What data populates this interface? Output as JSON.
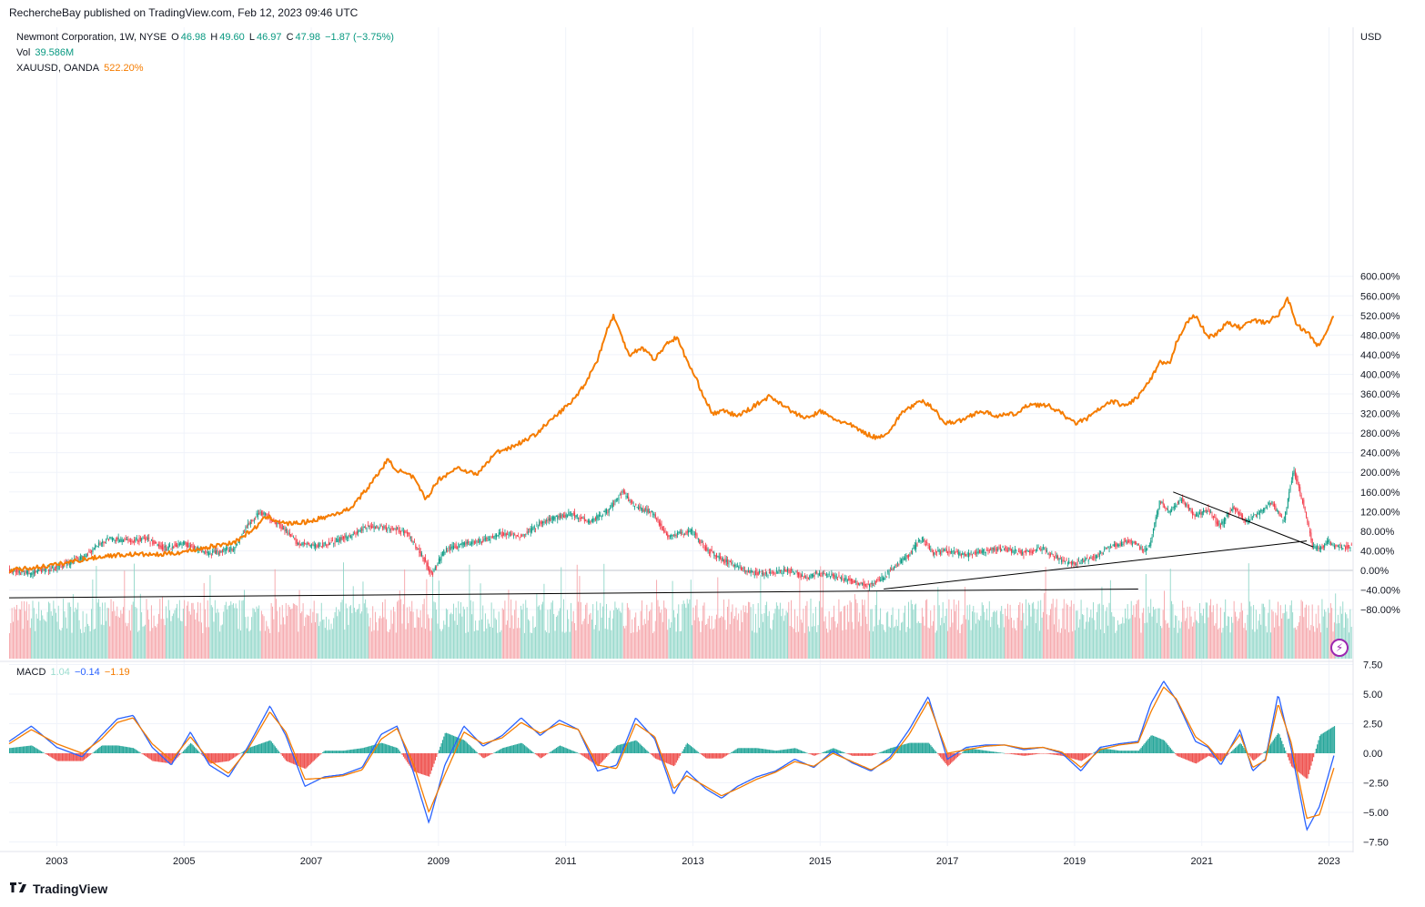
{
  "header": {
    "publisher_text": "RechercheBay published on TradingView.com, Feb 12, 2023 09:46 UTC"
  },
  "legend": {
    "symbol": "Newmont Corporation, 1W, NYSE",
    "o_label": "O",
    "o_value": "46.98",
    "h_label": "H",
    "h_value": "49.60",
    "l_label": "L",
    "l_value": "46.97",
    "c_label": "C",
    "c_value": "47.98",
    "change": "−1.87 (−3.75%)",
    "vol_label": "Vol",
    "vol_value": "39.586M",
    "compare_symbol": "XAUUSD, OANDA",
    "compare_value": "522.20%"
  },
  "macd_legend": {
    "label": "MACD",
    "histogram": "1.04",
    "macd": "−0.14",
    "signal": "−1.19"
  },
  "axis": {
    "currency": "USD",
    "y_ticks": [
      "600.00%",
      "560.00%",
      "520.00%",
      "480.00%",
      "440.00%",
      "400.00%",
      "360.00%",
      "320.00%",
      "280.00%",
      "240.00%",
      "200.00%",
      "160.00%",
      "120.00%",
      "80.00%",
      "40.00%",
      "0.00%",
      "−40.00%",
      "−80.00%"
    ],
    "macd_ticks": [
      "7.50",
      "5.00",
      "2.50",
      "0.00",
      "−2.50",
      "−5.00",
      "−7.50"
    ],
    "x_ticks": [
      "2003",
      "2005",
      "2007",
      "2009",
      "2011",
      "2013",
      "2015",
      "2017",
      "2019",
      "2021",
      "2023"
    ]
  },
  "footer": {
    "brand": "TradingView"
  },
  "colors": {
    "gold": "#f57c00",
    "up": "#089981",
    "down": "#f23645",
    "vol_up": "#8fd6c8",
    "vol_down": "#f5a3a8",
    "macd": "#2962ff",
    "signal": "#f57c00",
    "trendline": "#000000"
  },
  "chart_data": {
    "type": "line",
    "x_range": [
      2002.25,
      2023.35
    ],
    "ylim": [
      -100,
      640
    ],
    "y_unit": "%",
    "series": [
      {
        "name": "XAUUSD, OANDA",
        "x": [
          2002.25,
          2002.6,
          2003.0,
          2003.4,
          2003.8,
          2004.2,
          2004.6,
          2005.0,
          2005.4,
          2005.8,
          2006.1,
          2006.3,
          2006.6,
          2006.9,
          2007.2,
          2007.6,
          2007.9,
          2008.2,
          2008.35,
          2008.6,
          2008.8,
          2009.0,
          2009.3,
          2009.6,
          2009.9,
          2010.2,
          2010.5,
          2010.8,
          2011.1,
          2011.3,
          2011.5,
          2011.65,
          2011.75,
          2011.9,
          2012.0,
          2012.2,
          2012.4,
          2012.6,
          2012.75,
          2012.9,
          2013.05,
          2013.3,
          2013.5,
          2013.7,
          2013.9,
          2014.2,
          2014.4,
          2014.6,
          2014.8,
          2015.0,
          2015.2,
          2015.5,
          2015.7,
          2015.9,
          2016.1,
          2016.3,
          2016.6,
          2016.8,
          2016.95,
          2017.2,
          2017.5,
          2017.8,
          2018.1,
          2018.3,
          2018.6,
          2018.8,
          2019.0,
          2019.2,
          2019.4,
          2019.6,
          2019.8,
          2020.0,
          2020.2,
          2020.35,
          2020.5,
          2020.6,
          2020.75,
          2020.9,
          2021.1,
          2021.25,
          2021.4,
          2021.6,
          2021.8,
          2022.0,
          2022.2,
          2022.35,
          2022.5,
          2022.7,
          2022.85,
          2023.0,
          2023.08
        ],
        "values": [
          0,
          5,
          12,
          22,
          30,
          33,
          32,
          38,
          48,
          58,
          85,
          110,
          95,
          98,
          108,
          125,
          170,
          225,
          205,
          190,
          145,
          185,
          210,
          195,
          240,
          255,
          275,
          310,
          345,
          380,
          430,
          490,
          520,
          470,
          440,
          455,
          430,
          465,
          475,
          430,
          390,
          320,
          325,
          315,
          330,
          355,
          340,
          320,
          310,
          325,
          310,
          295,
          280,
          270,
          285,
          325,
          345,
          330,
          300,
          305,
          325,
          315,
          320,
          340,
          335,
          320,
          300,
          310,
          330,
          345,
          335,
          355,
          390,
          425,
          420,
          465,
          505,
          520,
          475,
          485,
          505,
          495,
          510,
          505,
          520,
          555,
          500,
          480,
          455,
          500,
          522
        ]
      },
      {
        "name": "Newmont Corporation, 1W, NYSE",
        "x": [
          2002.25,
          2002.6,
          2003.0,
          2003.4,
          2003.8,
          2004.2,
          2004.4,
          2004.7,
          2005.0,
          2005.4,
          2005.8,
          2006.0,
          2006.2,
          2006.5,
          2006.8,
          2007.1,
          2007.4,
          2007.7,
          2007.9,
          2008.2,
          2008.5,
          2008.8,
          2008.9,
          2009.1,
          2009.4,
          2009.7,
          2010.0,
          2010.3,
          2010.6,
          2010.9,
          2011.1,
          2011.4,
          2011.7,
          2011.9,
          2012.1,
          2012.4,
          2012.6,
          2012.8,
          2013.0,
          2013.2,
          2013.5,
          2013.7,
          2013.9,
          2014.2,
          2014.5,
          2014.8,
          2015.0,
          2015.3,
          2015.6,
          2015.8,
          2016.0,
          2016.2,
          2016.4,
          2016.6,
          2016.8,
          2017.0,
          2017.3,
          2017.6,
          2017.9,
          2018.2,
          2018.5,
          2018.8,
          2019.0,
          2019.3,
          2019.6,
          2019.9,
          2020.1,
          2020.2,
          2020.35,
          2020.5,
          2020.7,
          2020.9,
          2021.1,
          2021.3,
          2021.5,
          2021.7,
          2021.9,
          2022.1,
          2022.3,
          2022.45,
          2022.6,
          2022.75,
          2022.9,
          2023.0,
          2023.08
        ],
        "values": [
          0,
          -5,
          5,
          25,
          65,
          60,
          65,
          45,
          55,
          35,
          45,
          90,
          120,
          95,
          55,
          50,
          60,
          75,
          90,
          85,
          80,
          20,
          -10,
          40,
          55,
          60,
          75,
          70,
          95,
          110,
          115,
          100,
          125,
          160,
          130,
          115,
          70,
          75,
          80,
          45,
          20,
          10,
          -5,
          -5,
          0,
          -15,
          -5,
          -15,
          -25,
          -30,
          -15,
          10,
          30,
          65,
          35,
          40,
          30,
          40,
          45,
          35,
          45,
          20,
          15,
          25,
          50,
          60,
          40,
          55,
          140,
          120,
          145,
          110,
          125,
          90,
          130,
          100,
          115,
          140,
          100,
          205,
          140,
          50,
          45,
          60,
          48
        ]
      }
    ],
    "volume_bars": "weekly, ~1090 bars (not individually legible)",
    "macd": {
      "name": "MACD",
      "ylim": [
        -7.5,
        7.5
      ],
      "x": [
        2002.25,
        2002.6,
        2003.0,
        2003.4,
        2003.7,
        2003.95,
        2004.2,
        2004.5,
        2004.8,
        2005.1,
        2005.4,
        2005.7,
        2006.0,
        2006.35,
        2006.6,
        2006.9,
        2007.2,
        2007.5,
        2007.8,
        2008.1,
        2008.35,
        2008.6,
        2008.85,
        2009.1,
        2009.4,
        2009.7,
        2010.0,
        2010.3,
        2010.6,
        2010.9,
        2011.2,
        2011.5,
        2011.8,
        2012.1,
        2012.4,
        2012.7,
        2012.9,
        2013.2,
        2013.45,
        2013.7,
        2014.0,
        2014.3,
        2014.6,
        2014.9,
        2015.2,
        2015.5,
        2015.8,
        2016.1,
        2016.4,
        2016.7,
        2017.0,
        2017.3,
        2017.6,
        2017.9,
        2018.2,
        2018.5,
        2018.8,
        2019.1,
        2019.4,
        2019.7,
        2020.0,
        2020.2,
        2020.4,
        2020.6,
        2020.9,
        2021.1,
        2021.3,
        2021.6,
        2021.8,
        2022.0,
        2022.2,
        2022.4,
        2022.65,
        2022.85,
        2023.08
      ],
      "macd_values": [
        1.0,
        2.3,
        0.5,
        -0.3,
        1.5,
        2.9,
        3.2,
        0.5,
        -1.0,
        1.8,
        -1.0,
        -2.0,
        0.5,
        4.0,
        1.5,
        -2.8,
        -2.0,
        -1.8,
        -1.2,
        1.6,
        2.3,
        -1.5,
        -5.9,
        -1.0,
        2.3,
        0.6,
        1.5,
        3.0,
        1.5,
        2.8,
        2.0,
        -1.5,
        -1.0,
        3.0,
        1.2,
        -3.5,
        -1.5,
        -3.0,
        -3.8,
        -2.8,
        -2.0,
        -1.5,
        -0.5,
        -1.2,
        0.2,
        -0.8,
        -1.5,
        -0.3,
        2.0,
        4.8,
        -0.5,
        0.5,
        0.7,
        0.7,
        0.3,
        0.5,
        0.0,
        -1.5,
        0.5,
        0.8,
        1.0,
        4.2,
        6.1,
        4.5,
        1.0,
        0.5,
        -1.0,
        2.0,
        -1.5,
        -0.5,
        5.0,
        0.5,
        -6.5,
        -4.5,
        -0.14
      ],
      "signal_values": [
        0.8,
        2.0,
        0.8,
        0.0,
        1.2,
        2.6,
        3.0,
        0.8,
        -0.6,
        1.4,
        -0.6,
        -1.7,
        0.3,
        3.5,
        1.8,
        -2.2,
        -2.1,
        -1.9,
        -1.4,
        1.2,
        2.1,
        -0.8,
        -5.0,
        -1.8,
        1.8,
        0.8,
        1.3,
        2.6,
        1.7,
        2.5,
        2.0,
        -1.0,
        -1.3,
        2.5,
        1.4,
        -3.0,
        -1.9,
        -2.8,
        -3.6,
        -3.0,
        -2.2,
        -1.6,
        -0.7,
        -1.1,
        0.0,
        -0.7,
        -1.4,
        -0.5,
        1.6,
        4.4,
        0.0,
        0.3,
        0.6,
        0.7,
        0.4,
        0.5,
        0.1,
        -1.2,
        0.3,
        0.7,
        0.9,
        3.5,
        5.6,
        4.6,
        1.4,
        0.6,
        -0.7,
        1.6,
        -1.2,
        -0.6,
        4.2,
        1.0,
        -5.5,
        -5.2,
        -1.19
      ]
    }
  }
}
